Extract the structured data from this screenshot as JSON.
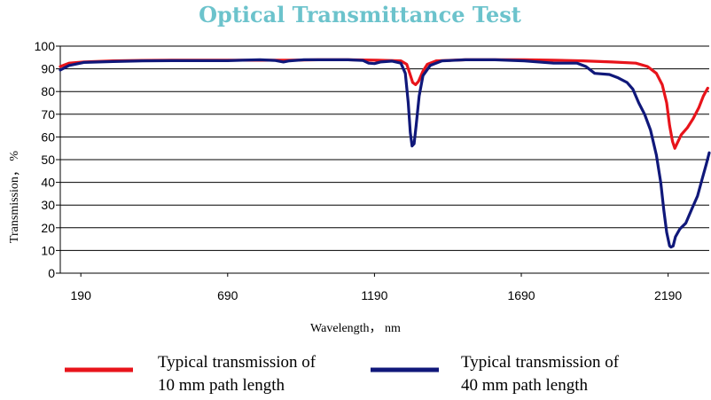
{
  "chart_data": {
    "type": "line",
    "title": "Optical Transmittance Test",
    "xlabel": "Wavelength， nm",
    "ylabel": "Transmission， %",
    "xlim": [
      120,
      2330
    ],
    "ylim": [
      0,
      100
    ],
    "x_ticks": [
      190,
      690,
      1190,
      1690,
      2190
    ],
    "y_ticks": [
      0,
      10,
      20,
      30,
      40,
      50,
      60,
      70,
      80,
      90,
      100
    ],
    "grid": "horizontal",
    "legend_position": "bottom",
    "series": [
      {
        "name_lines": [
          "Typical transmission of",
          "10 mm path length"
        ],
        "color": "#e8141b",
        "points": [
          [
            120,
            91
          ],
          [
            150,
            92.5
          ],
          [
            200,
            93
          ],
          [
            300,
            93.5
          ],
          [
            400,
            93.7
          ],
          [
            500,
            93.8
          ],
          [
            600,
            93.8
          ],
          [
            700,
            93.8
          ],
          [
            800,
            93.8
          ],
          [
            900,
            93.8
          ],
          [
            1000,
            94
          ],
          [
            1100,
            94
          ],
          [
            1200,
            93.8
          ],
          [
            1280,
            93.5
          ],
          [
            1300,
            92
          ],
          [
            1310,
            88
          ],
          [
            1320,
            84
          ],
          [
            1330,
            83
          ],
          [
            1340,
            84.5
          ],
          [
            1355,
            89
          ],
          [
            1370,
            92
          ],
          [
            1400,
            93.5
          ],
          [
            1500,
            94
          ],
          [
            1600,
            94
          ],
          [
            1700,
            94
          ],
          [
            1800,
            93.8
          ],
          [
            1900,
            93.5
          ],
          [
            2000,
            93
          ],
          [
            2080,
            92.5
          ],
          [
            2120,
            91
          ],
          [
            2150,
            88
          ],
          [
            2170,
            83
          ],
          [
            2185,
            75
          ],
          [
            2195,
            65
          ],
          [
            2205,
            58
          ],
          [
            2213,
            55
          ],
          [
            2220,
            57
          ],
          [
            2235,
            61
          ],
          [
            2255,
            64
          ],
          [
            2275,
            68
          ],
          [
            2295,
            73
          ],
          [
            2310,
            78
          ],
          [
            2325,
            81.5
          ]
        ]
      },
      {
        "name_lines": [
          "Typical transmission of",
          "40 mm path length"
        ],
        "color": "#10187a",
        "points": [
          [
            120,
            89.5
          ],
          [
            150,
            91.5
          ],
          [
            200,
            92.8
          ],
          [
            300,
            93.2
          ],
          [
            400,
            93.5
          ],
          [
            500,
            93.6
          ],
          [
            600,
            93.6
          ],
          [
            690,
            93.6
          ],
          [
            740,
            93.8
          ],
          [
            800,
            94
          ],
          [
            850,
            93.7
          ],
          [
            880,
            93
          ],
          [
            900,
            93.5
          ],
          [
            950,
            94
          ],
          [
            1000,
            94
          ],
          [
            1100,
            94
          ],
          [
            1150,
            93.7
          ],
          [
            1170,
            92.5
          ],
          [
            1190,
            92.3
          ],
          [
            1210,
            93
          ],
          [
            1250,
            93.4
          ],
          [
            1280,
            92.5
          ],
          [
            1295,
            88
          ],
          [
            1305,
            75
          ],
          [
            1312,
            62
          ],
          [
            1318,
            56
          ],
          [
            1325,
            57
          ],
          [
            1332,
            65
          ],
          [
            1342,
            78
          ],
          [
            1355,
            87
          ],
          [
            1380,
            91.5
          ],
          [
            1420,
            93.5
          ],
          [
            1500,
            94
          ],
          [
            1600,
            94
          ],
          [
            1700,
            93.5
          ],
          [
            1800,
            92.5
          ],
          [
            1880,
            92.5
          ],
          [
            1910,
            91
          ],
          [
            1940,
            88
          ],
          [
            1990,
            87.5
          ],
          [
            2020,
            86
          ],
          [
            2050,
            84
          ],
          [
            2070,
            81
          ],
          [
            2090,
            75
          ],
          [
            2110,
            70
          ],
          [
            2130,
            63
          ],
          [
            2150,
            52
          ],
          [
            2165,
            40
          ],
          [
            2175,
            28
          ],
          [
            2185,
            18
          ],
          [
            2195,
            12
          ],
          [
            2200,
            11.5
          ],
          [
            2207,
            12
          ],
          [
            2215,
            16
          ],
          [
            2230,
            19.5
          ],
          [
            2250,
            22
          ],
          [
            2270,
            28
          ],
          [
            2290,
            34
          ],
          [
            2305,
            41
          ],
          [
            2320,
            48
          ],
          [
            2330,
            53
          ]
        ]
      }
    ]
  }
}
